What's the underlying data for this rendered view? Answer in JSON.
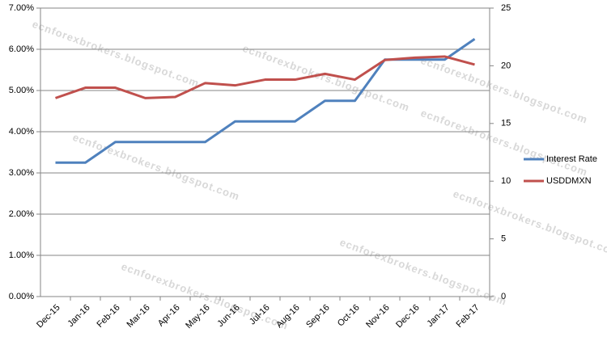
{
  "chart_data": {
    "type": "line",
    "categories": [
      "Dec-15",
      "Jan-16",
      "Feb-16",
      "Mar-16",
      "Apr-16",
      "May-16",
      "Jun-16",
      "Jul-16",
      "Aug-16",
      "Sep-16",
      "Oct-16",
      "Nov-16",
      "Dec-16",
      "Jan-17",
      "Feb-17"
    ],
    "series": [
      {
        "name": "Interest Rate",
        "color": "#4f81bd",
        "values": [
          3.25,
          3.25,
          3.75,
          3.75,
          3.75,
          3.75,
          4.25,
          4.25,
          4.25,
          4.75,
          4.75,
          5.75,
          5.75,
          5.75,
          6.25
        ]
      },
      {
        "name": "USDDMXN",
        "color": "#c0504d",
        "axis": "y2",
        "values": [
          17.2,
          18.1,
          18.1,
          17.2,
          17.3,
          18.5,
          18.3,
          18.8,
          18.8,
          19.3,
          18.8,
          20.5,
          20.7,
          20.8,
          20.1
        ]
      }
    ],
    "ylim": [
      0,
      7
    ],
    "yticks": [
      {
        "value": 0,
        "label": "0.00%"
      },
      {
        "value": 1,
        "label": "1.00%"
      },
      {
        "value": 2,
        "label": "2.00%"
      },
      {
        "value": 3,
        "label": "3.00%"
      },
      {
        "value": 4,
        "label": "4.00%"
      },
      {
        "value": 5,
        "label": "5.00%"
      },
      {
        "value": 6,
        "label": "6.00%"
      },
      {
        "value": 7,
        "label": "7.00%"
      }
    ],
    "y2lim": [
      0,
      25
    ],
    "y2ticks": [
      0,
      5,
      10,
      15,
      20,
      25
    ],
    "grid": true,
    "legend": "right",
    "watermark": "ecnforexbrokers.blogspot.com"
  }
}
